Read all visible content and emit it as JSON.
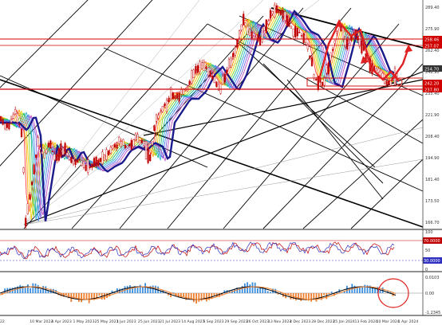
{
  "price_axis": {
    "labels": [
      "289.40",
      "275.90",
      "262.40",
      "248.90",
      "235.40",
      "221.90",
      "208.40",
      "194.90",
      "181.40",
      "173.50",
      "166.70"
    ],
    "tag_upper": "258.46",
    "tag_upper2": "257.07",
    "tag_current": "254.70",
    "tag_lower": "242.20",
    "tag_lower2": "237.80"
  },
  "rsi_axis": {
    "labels": [
      "100",
      "70.0000",
      "50",
      "30.0000",
      "0"
    ],
    "level_hi": "70.0000",
    "level_lo": "30.0000"
  },
  "macd_axis": {
    "labels": [
      "0.0103",
      "0.00",
      "-1.2345"
    ]
  },
  "time_axis": {
    "labels": [
      "22",
      "10 Mar 2023",
      "4 Apr 2023",
      "1 May 2023",
      "25 May 2023",
      "1 Jun 2023",
      "25 Jun 2023",
      "21 Jul 2023",
      "14 Aug 2023",
      "5 Sep 2023",
      "29 Sep 2023",
      "26 Oct 2023",
      "13 Nov 2023",
      "4 Dec 2023",
      "28 Dec 2023",
      "25 Jan 2024",
      "13 Feb 2024",
      "10 Mar 2024",
      "1 Apr 2024"
    ]
  },
  "colors": {
    "background": "#ffffff",
    "candle": "#c00000",
    "ma_dark": "#1a1a8c",
    "sr_line": "#d00000",
    "trend": "#000000",
    "rsi_red": "#c00000",
    "rsi_blue": "#3030c0",
    "macd_hist_pos": "#3b8fe0",
    "macd_hist_neg": "#f08030",
    "tag_red": "#d00000",
    "tag_dark": "#333333"
  }
}
